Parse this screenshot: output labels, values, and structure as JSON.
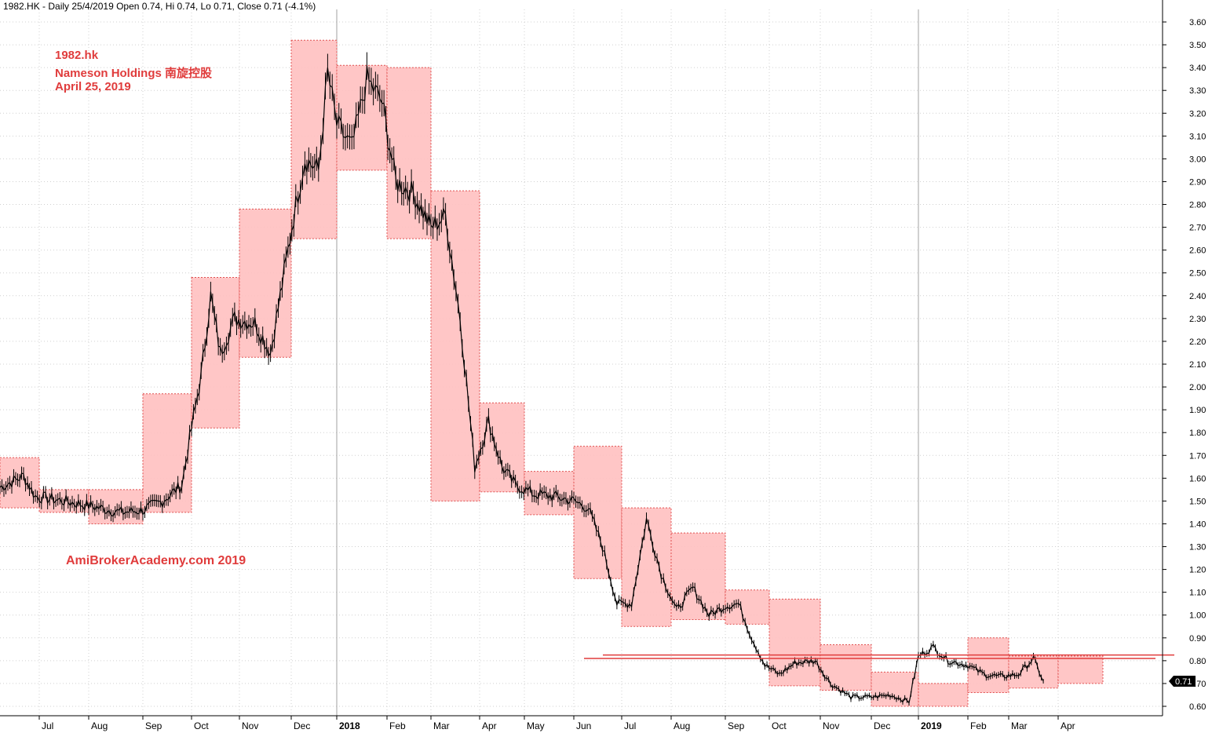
{
  "header": {
    "text": "1982.HK - Daily 25/4/2019 Open 0.74, Hi 0.74, Lo 0.71, Close 0.71 (-4.1%)"
  },
  "annotations": {
    "ticker": "1982.hk",
    "company": "Nameson Holdings 南旋控股",
    "date": "April 25, 2019",
    "watermark": "AmiBroker­Academy.com   2019"
  },
  "last_price_label": "0.71",
  "colors": {
    "box_fill": "#ffc0c0",
    "box_stroke": "#e05050",
    "line": "#e03c3c",
    "candle": "#000000",
    "grid": "#d0d0d0"
  },
  "chart_data": {
    "type": "line",
    "title": "",
    "ylim": [
      0.55,
      3.65
    ],
    "y_ticks": [
      "3.60",
      "3.50",
      "3.40",
      "3.30",
      "3.20",
      "3.10",
      "3.00",
      "2.90",
      "2.80",
      "2.70",
      "2.60",
      "2.50",
      "2.40",
      "2.30",
      "2.20",
      "2.10",
      "2.00",
      "1.90",
      "1.80",
      "1.70",
      "1.60",
      "1.50",
      "1.40",
      "1.30",
      "1.20",
      "1.10",
      "1.00",
      "0.90",
      "0.80",
      "0.70",
      "0.60"
    ],
    "x_ticks": [
      {
        "label": "Jul",
        "bold": false
      },
      {
        "label": "Aug",
        "bold": false
      },
      {
        "label": "Sep",
        "bold": false
      },
      {
        "label": "Oct",
        "bold": false
      },
      {
        "label": "Nov",
        "bold": false
      },
      {
        "label": "Dec",
        "bold": false
      },
      {
        "label": "2018",
        "bold": true
      },
      {
        "label": "Feb",
        "bold": false
      },
      {
        "label": "Mar",
        "bold": false
      },
      {
        "label": "Apr",
        "bold": false
      },
      {
        "label": "May",
        "bold": false
      },
      {
        "label": "Jun",
        "bold": false
      },
      {
        "label": "Jul",
        "bold": false
      },
      {
        "label": "Aug",
        "bold": false
      },
      {
        "label": "Sep",
        "bold": false
      },
      {
        "label": "Oct",
        "bold": false
      },
      {
        "label": "Nov",
        "bold": false
      },
      {
        "label": "Dec",
        "bold": false
      },
      {
        "label": "2019",
        "bold": true
      },
      {
        "label": "Feb",
        "bold": false
      },
      {
        "label": "Mar",
        "bold": false
      },
      {
        "label": "Apr",
        "bold": false
      }
    ],
    "monthly_range_boxes": [
      {
        "month": "Jun 2017",
        "high": 1.69,
        "low": 1.47
      },
      {
        "month": "Jul 2017",
        "high": 1.55,
        "low": 1.45
      },
      {
        "month": "Aug 2017",
        "high": 1.55,
        "low": 1.4
      },
      {
        "month": "Sep 2017",
        "high": 1.97,
        "low": 1.45
      },
      {
        "month": "Oct 2017",
        "high": 2.48,
        "low": 1.82
      },
      {
        "month": "Nov 2017",
        "high": 2.78,
        "low": 2.13
      },
      {
        "month": "Dec 2017",
        "high": 3.52,
        "low": 2.65
      },
      {
        "month": "Jan 2018",
        "high": 3.41,
        "low": 2.95
      },
      {
        "month": "Feb 2018",
        "high": 3.4,
        "low": 2.65
      },
      {
        "month": "Mar 2018",
        "high": 2.86,
        "low": 1.5
      },
      {
        "month": "Apr 2018",
        "high": 1.93,
        "low": 1.54
      },
      {
        "month": "May 2018",
        "high": 1.63,
        "low": 1.44
      },
      {
        "month": "Jun 2018",
        "high": 1.74,
        "low": 1.16
      },
      {
        "month": "Jul 2018",
        "high": 1.47,
        "low": 0.95
      },
      {
        "month": "Aug 2018",
        "high": 1.36,
        "low": 0.98
      },
      {
        "month": "Sep 2018",
        "high": 1.11,
        "low": 0.96
      },
      {
        "month": "Oct 2018",
        "high": 1.07,
        "low": 0.69
      },
      {
        "month": "Nov 2018",
        "high": 0.87,
        "low": 0.67
      },
      {
        "month": "Dec 2018",
        "high": 0.75,
        "low": 0.6
      },
      {
        "month": "Jan 2019",
        "high": 0.7,
        "low": 0.6
      },
      {
        "month": "Feb 2019",
        "high": 0.9,
        "low": 0.66
      },
      {
        "month": "Mar 2019",
        "high": 0.82,
        "low": 0.68
      },
      {
        "month": "Apr 2019",
        "high": 0.82,
        "low": 0.7
      }
    ],
    "resistance_lines": [
      0.825,
      0.81
    ],
    "price_path": [
      {
        "t": 0.0,
        "v": 1.56
      },
      {
        "t": 0.6,
        "v": 1.61
      },
      {
        "t": 0.9,
        "v": 1.52
      },
      {
        "t": 1.5,
        "v": 1.5
      },
      {
        "t": 2.0,
        "v": 1.48
      },
      {
        "t": 2.6,
        "v": 1.45
      },
      {
        "t": 3.0,
        "v": 1.46
      },
      {
        "t": 3.4,
        "v": 1.5
      },
      {
        "t": 3.8,
        "v": 1.57
      },
      {
        "t": 4.0,
        "v": 1.82
      },
      {
        "t": 4.2,
        "v": 2.05
      },
      {
        "t": 4.4,
        "v": 2.4
      },
      {
        "t": 4.6,
        "v": 2.15
      },
      {
        "t": 4.9,
        "v": 2.3
      },
      {
        "t": 5.3,
        "v": 2.28
      },
      {
        "t": 5.6,
        "v": 2.15
      },
      {
        "t": 5.9,
        "v": 2.55
      },
      {
        "t": 6.1,
        "v": 2.8
      },
      {
        "t": 6.3,
        "v": 3.0
      },
      {
        "t": 6.6,
        "v": 2.95
      },
      {
        "t": 6.8,
        "v": 3.38
      },
      {
        "t": 7.0,
        "v": 3.15
      },
      {
        "t": 7.3,
        "v": 3.05
      },
      {
        "t": 7.6,
        "v": 3.35
      },
      {
        "t": 7.9,
        "v": 3.25
      },
      {
        "t": 8.2,
        "v": 2.9
      },
      {
        "t": 8.6,
        "v": 2.85
      },
      {
        "t": 9.0,
        "v": 2.7
      },
      {
        "t": 9.3,
        "v": 2.75
      },
      {
        "t": 9.6,
        "v": 2.3
      },
      {
        "t": 9.9,
        "v": 1.65
      },
      {
        "t": 10.2,
        "v": 1.85
      },
      {
        "t": 10.5,
        "v": 1.65
      },
      {
        "t": 10.8,
        "v": 1.57
      },
      {
        "t": 11.2,
        "v": 1.53
      },
      {
        "t": 11.6,
        "v": 1.52
      },
      {
        "t": 12.0,
        "v": 1.5
      },
      {
        "t": 12.3,
        "v": 1.47
      },
      {
        "t": 12.6,
        "v": 1.3
      },
      {
        "t": 12.9,
        "v": 1.05
      },
      {
        "t": 13.2,
        "v": 1.05
      },
      {
        "t": 13.5,
        "v": 1.42
      },
      {
        "t": 13.8,
        "v": 1.18
      },
      {
        "t": 14.1,
        "v": 1.02
      },
      {
        "t": 14.4,
        "v": 1.12
      },
      {
        "t": 14.7,
        "v": 1.0
      },
      {
        "t": 15.0,
        "v": 1.04
      },
      {
        "t": 15.3,
        "v": 1.05
      },
      {
        "t": 15.6,
        "v": 0.9
      },
      {
        "t": 15.9,
        "v": 0.78
      },
      {
        "t": 16.2,
        "v": 0.74
      },
      {
        "t": 16.5,
        "v": 0.79
      },
      {
        "t": 16.9,
        "v": 0.8
      },
      {
        "t": 17.2,
        "v": 0.7
      },
      {
        "t": 17.6,
        "v": 0.64
      },
      {
        "t": 18.0,
        "v": 0.64
      },
      {
        "t": 18.4,
        "v": 0.65
      },
      {
        "t": 18.8,
        "v": 0.62
      },
      {
        "t": 19.0,
        "v": 0.82
      },
      {
        "t": 19.3,
        "v": 0.86
      },
      {
        "t": 19.6,
        "v": 0.8
      },
      {
        "t": 20.0,
        "v": 0.78
      },
      {
        "t": 20.4,
        "v": 0.74
      },
      {
        "t": 20.8,
        "v": 0.73
      },
      {
        "t": 21.2,
        "v": 0.74
      },
      {
        "t": 21.5,
        "v": 0.81
      },
      {
        "t": 21.7,
        "v": 0.71
      }
    ]
  }
}
